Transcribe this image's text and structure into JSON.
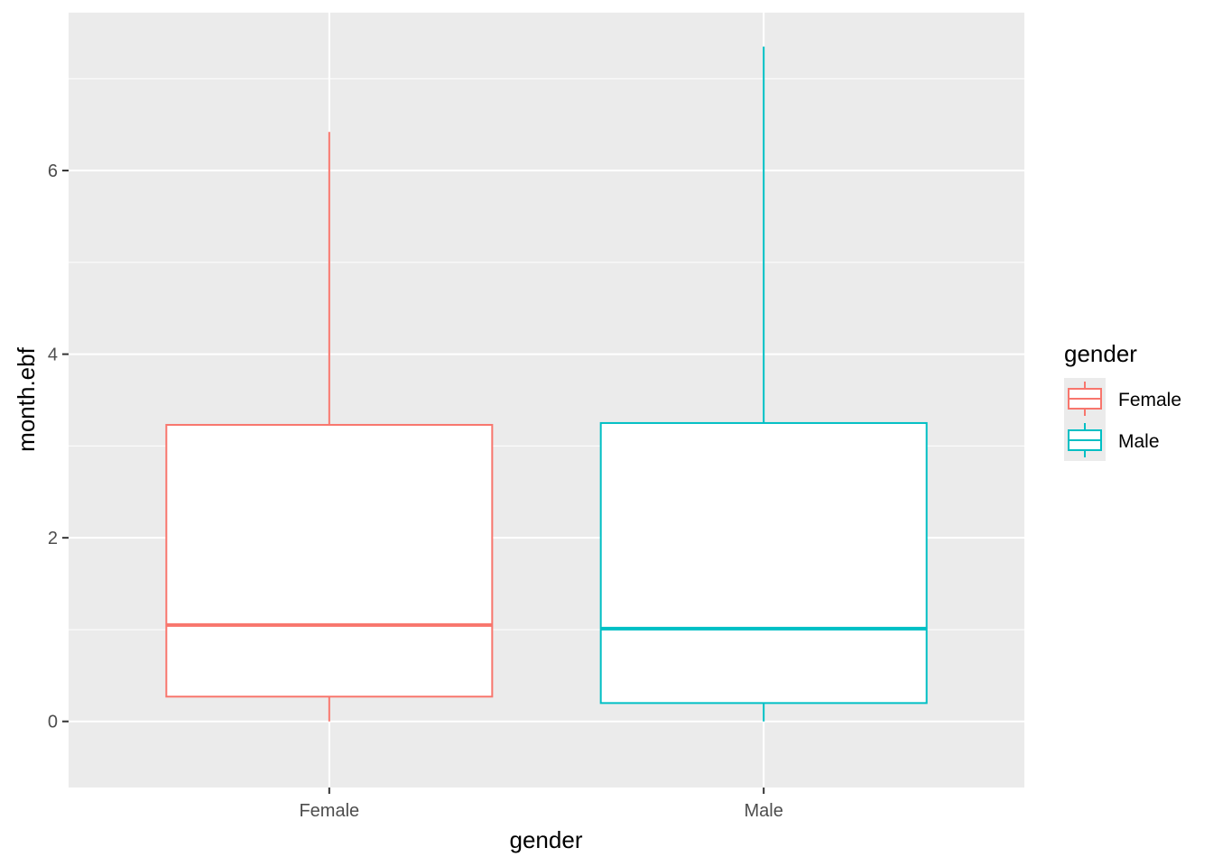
{
  "chart_data": {
    "type": "boxplot",
    "xlabel": "gender",
    "ylabel": "month.ebf",
    "categories": [
      "Female",
      "Male"
    ],
    "ylim": [
      -0.72,
      7.72
    ],
    "yticks": [
      0,
      2,
      4,
      6
    ],
    "ytick_labels": [
      "0",
      "2",
      "4",
      "6"
    ],
    "grid": true,
    "series": [
      {
        "name": "Female",
        "color": "#F8766D",
        "min": 0.0,
        "q1": 0.27,
        "median": 1.05,
        "q3": 3.23,
        "max": 6.42
      },
      {
        "name": "Male",
        "color": "#00BFC4",
        "min": 0.0,
        "q1": 0.2,
        "median": 1.01,
        "q3": 3.25,
        "max": 7.35
      }
    ],
    "legend": {
      "title": "gender",
      "position": "right",
      "entries": [
        "Female",
        "Male"
      ]
    },
    "panel_background": "#EBEBEB",
    "grid_color": "#FFFFFF"
  }
}
